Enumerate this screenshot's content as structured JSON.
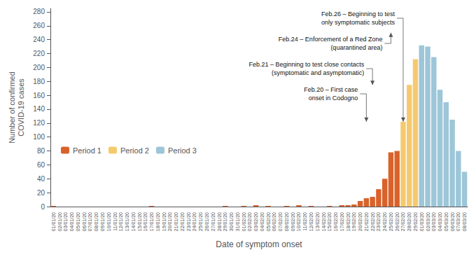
{
  "chart_data": {
    "type": "bar",
    "xlabel": "Date of symptom onset",
    "ylabel": "Number of confirmed\nCOVID-19 cases",
    "categories": [
      "01/01/20",
      "02/01/20",
      "03/01/20",
      "04/01/20",
      "05/01/20",
      "06/01/20",
      "07/01/20",
      "08/01/20",
      "09/01/20",
      "10/01/20",
      "11/01/20",
      "12/01/20",
      "13/01/20",
      "14/01/20",
      "15/01/20",
      "16/01/20",
      "17/01/20",
      "18/01/20",
      "19/01/20",
      "20/01/20",
      "21/01/20",
      "22/01/20",
      "23/01/20",
      "24/01/20",
      "25/01/20",
      "26/01/20",
      "27/01/20",
      "28/01/20",
      "29/01/20",
      "30/01/20",
      "31/01/20",
      "01/02/20",
      "02/02/20",
      "03/02/20",
      "04/02/20",
      "05/02/20",
      "06/02/20",
      "07/02/20",
      "08/02/20",
      "09/02/20",
      "10/02/20",
      "11/02/20",
      "12/02/20",
      "13/02/20",
      "14/02/20",
      "15/02/20",
      "16/02/20",
      "17/02/20",
      "18/02/20",
      "19/02/20",
      "20/02/20",
      "21/02/20",
      "22/02/20",
      "23/02/20",
      "24/02/20",
      "25/02/20",
      "26/02/20",
      "27/02/20",
      "28/02/20",
      "29/02/20",
      "01/03/20",
      "02/03/20",
      "03/03/20",
      "04/03/20",
      "05/03/20",
      "06/03/20",
      "07/03/20",
      "08/03/20"
    ],
    "series": [
      {
        "name": "Period 1",
        "color": "#d9622b",
        "values": [
          1,
          0,
          0,
          0,
          0,
          0,
          0,
          0,
          0,
          0,
          0,
          0,
          0,
          0,
          0,
          0,
          1,
          0,
          0,
          0,
          0,
          0,
          0,
          0,
          0,
          0,
          0,
          0,
          1,
          0,
          0,
          1,
          0,
          2,
          0,
          1,
          0,
          0,
          1,
          0,
          2,
          0,
          1,
          0,
          0,
          1,
          0,
          2,
          2,
          3,
          8,
          12,
          14,
          25,
          40,
          78,
          80,
          0,
          0,
          0,
          0,
          0,
          0,
          0,
          0,
          0,
          0,
          0
        ]
      },
      {
        "name": "Period 2",
        "color": "#f5ca6e",
        "values": [
          0,
          0,
          0,
          0,
          0,
          0,
          0,
          0,
          0,
          0,
          0,
          0,
          0,
          0,
          0,
          0,
          0,
          0,
          0,
          0,
          0,
          0,
          0,
          0,
          0,
          0,
          0,
          0,
          0,
          0,
          0,
          0,
          0,
          0,
          0,
          0,
          0,
          0,
          0,
          0,
          0,
          0,
          0,
          0,
          0,
          0,
          0,
          0,
          0,
          0,
          0,
          0,
          0,
          0,
          0,
          0,
          0,
          122,
          175,
          212,
          0,
          0,
          0,
          0,
          0,
          0,
          0,
          0
        ]
      },
      {
        "name": "Period 3",
        "color": "#9dc6d8",
        "values": [
          0,
          0,
          0,
          0,
          0,
          0,
          0,
          0,
          0,
          0,
          0,
          0,
          0,
          0,
          0,
          0,
          0,
          0,
          0,
          0,
          0,
          0,
          0,
          0,
          0,
          0,
          0,
          0,
          0,
          0,
          0,
          0,
          0,
          0,
          0,
          0,
          0,
          0,
          0,
          0,
          0,
          0,
          0,
          0,
          0,
          0,
          0,
          0,
          0,
          0,
          0,
          0,
          0,
          0,
          0,
          0,
          0,
          0,
          0,
          0,
          232,
          230,
          215,
          168,
          150,
          125,
          80,
          50
        ]
      }
    ],
    "ylim": [
      0,
      285
    ],
    "yticks": [
      0,
      20,
      40,
      60,
      80,
      100,
      120,
      140,
      160,
      180,
      200,
      220,
      240,
      260,
      280
    ],
    "grid": false,
    "legend": "lower left",
    "annotations": [
      {
        "text": "Feb.26 – Beginning to test\nonly symptomatic subjects",
        "x": "27/02/20",
        "y": 122
      },
      {
        "text": "Feb.24 – Enforcement of a Red Zone\n(quarantined area)",
        "x": "25/02/20",
        "y": 250
      },
      {
        "text": "Feb.21 – Beginning to test close contacts\n(symptomatic and asymptomatic)",
        "x": "22/02/20",
        "y": 175
      },
      {
        "text": "Feb.20 – First case\nonset in Codogno",
        "x": "21/02/20",
        "y": 122
      }
    ]
  }
}
